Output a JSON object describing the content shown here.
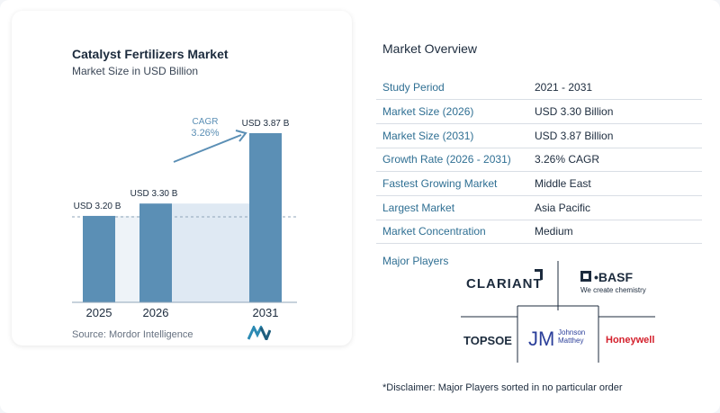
{
  "left": {
    "title": "Catalyst Fertilizers Market",
    "subtitle": "Market Size in USD Billion",
    "source": "Source: Mordor Intelligence"
  },
  "chart_data": {
    "type": "bar",
    "title": "Catalyst Fertilizers Market",
    "subtitle": "Market Size in USD Billion",
    "categories": [
      "2025",
      "2026",
      "2031"
    ],
    "values": [
      3.2,
      3.3,
      3.87
    ],
    "value_labels": [
      "USD 3.20 B",
      "USD 3.30 B",
      "USD 3.87 B"
    ],
    "cagr_label": "CAGR",
    "cagr_value": "3.26%",
    "bar_color": "#5b8fb5",
    "band_color": "#dfe9f3",
    "grid": false
  },
  "overview": {
    "title": "Market Overview",
    "rows": [
      {
        "label": "Study Period",
        "value": "2021 - 2031"
      },
      {
        "label": "Market Size (2026)",
        "value": "USD 3.30 Billion"
      },
      {
        "label": "Market Size (2031)",
        "value": "USD 3.87 Billion"
      },
      {
        "label": "Growth Rate (2026 - 2031)",
        "value": "3.26% CAGR"
      },
      {
        "label": "Fastest Growing Market",
        "value": "Middle East"
      },
      {
        "label": "Largest Market",
        "value": "Asia Pacific"
      },
      {
        "label": "Market Concentration",
        "value": "Medium"
      }
    ]
  },
  "players": {
    "title": "Major Players",
    "clariant": "CLARIANT",
    "basf": "BASF",
    "basf_tag": "We create chemistry",
    "topsoe": "TOPSOE",
    "jm": "JM",
    "jm_name1": "Johnson",
    "jm_name2": "Matthey",
    "honeywell": "Honeywell"
  },
  "disclaimer": "*Disclaimer: Major Players sorted in no particular order"
}
